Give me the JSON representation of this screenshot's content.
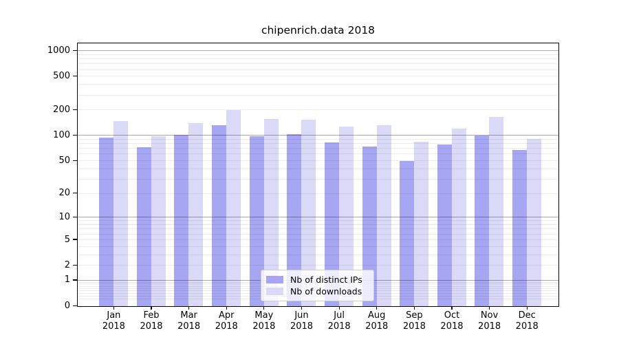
{
  "chart_data": {
    "type": "bar",
    "title": "chipenrich.data 2018",
    "x_tick_months": [
      "Jan",
      "Feb",
      "Mar",
      "Apr",
      "May",
      "Jun",
      "Jul",
      "Aug",
      "Sep",
      "Oct",
      "Nov",
      "Dec"
    ],
    "x_tick_year": "2018",
    "categories": [
      "Jan 2018",
      "Feb 2018",
      "Mar 2018",
      "Apr 2018",
      "May 2018",
      "Jun 2018",
      "Jul 2018",
      "Aug 2018",
      "Sep 2018",
      "Oct 2018",
      "Nov 2018",
      "Dec 2018"
    ],
    "series": [
      {
        "name": "Nb of distinct IPs",
        "color": "#a6a6f2",
        "values": [
          93,
          72,
          101,
          130,
          96,
          102,
          82,
          73,
          49,
          77,
          98,
          66
        ]
      },
      {
        "name": "Nb of downloads",
        "color": "#dadaf8",
        "values": [
          145,
          97,
          138,
          197,
          154,
          153,
          125,
          131,
          83,
          120,
          164,
          90
        ]
      }
    ],
    "yscale": "log1p",
    "yticks": [
      0,
      1,
      2,
      5,
      10,
      20,
      50,
      100,
      200,
      500,
      1000
    ],
    "ylim": [
      0,
      1210
    ],
    "grid": "on",
    "grid_colors": {
      "major": "#aaaaaa",
      "minor": "#ececec"
    },
    "legend_position": "lower center"
  }
}
